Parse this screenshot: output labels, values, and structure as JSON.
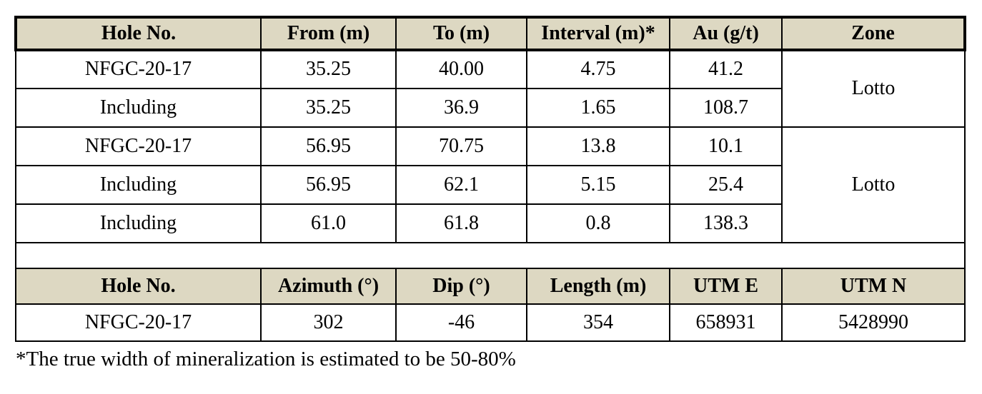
{
  "intercepts": {
    "headers": [
      "Hole No.",
      "From (m)",
      "To (m)",
      "Interval (m)*",
      "Au (g/t)",
      "Zone"
    ],
    "rows": [
      {
        "hole": "NFGC-20-17",
        "from": "35.25",
        "to": "40.00",
        "interval": "4.75",
        "au": "41.2",
        "zone": "Lotto"
      },
      {
        "hole": "Including",
        "from": "35.25",
        "to": "36.9",
        "interval": "1.65",
        "au": "108.7"
      },
      {
        "hole": "NFGC-20-17",
        "from": "56.95",
        "to": "70.75",
        "interval": "13.8",
        "au": "10.1",
        "zone": "Lotto"
      },
      {
        "hole": "Including",
        "from": "56.95",
        "to": "62.1",
        "interval": "5.15",
        "au": "25.4"
      },
      {
        "hole": "Including",
        "from": "61.0",
        "to": "61.8",
        "interval": "0.8",
        "au": "138.3"
      }
    ]
  },
  "collar": {
    "headers": [
      "Hole No.",
      "Azimuth (°)",
      "Dip (°)",
      "Length (m)",
      "UTM E",
      "UTM N"
    ],
    "rows": [
      {
        "hole": "NFGC-20-17",
        "azimuth": "302",
        "dip": "-46",
        "length": "354",
        "utm_e": "658931",
        "utm_n": "5428990"
      }
    ]
  },
  "footnote": "*The true width of mineralization is estimated to be 50-80%",
  "colors": {
    "header_bg": "#DDD8C2",
    "border": "#000000",
    "page_bg": "#FFFFFF"
  }
}
